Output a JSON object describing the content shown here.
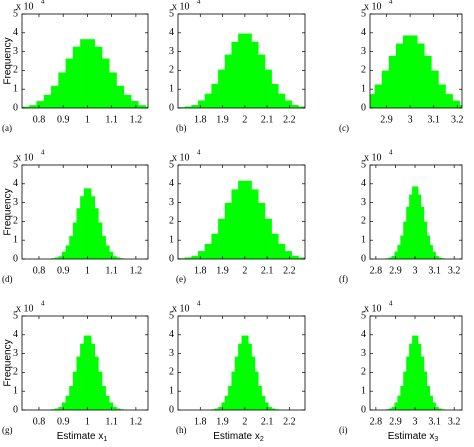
{
  "chart_data": [
    {
      "type": "histogram",
      "label": "(a)",
      "ylabel": "Frequency",
      "y_multiplier": "x 10",
      "y_multiplier_exponent": "4",
      "color": "#00ff00",
      "xlim": [
        0.73,
        1.25
      ],
      "ylim": [
        0,
        5
      ],
      "xticks": [
        0.8,
        0.9,
        1,
        1.1,
        1.2
      ],
      "yticks": [
        0,
        1,
        2,
        3,
        4,
        5
      ],
      "bins": [
        0.7,
        0.73,
        0.76,
        0.79,
        0.82,
        0.85,
        0.88,
        0.91,
        0.94,
        0.97,
        1,
        1.03,
        1.06,
        1.09,
        1.12,
        1.15,
        1.18,
        1.21,
        1.24,
        1.27,
        1.3
      ],
      "values": [
        0.04,
        0.07,
        0.15,
        0.37,
        0.7,
        1.18,
        1.89,
        2.63,
        3.26,
        3.66,
        3.66,
        3.26,
        2.63,
        1.89,
        1.18,
        0.7,
        0.37,
        0.15,
        0.07,
        0.04
      ]
    },
    {
      "type": "histogram",
      "label": "(b)",
      "y_multiplier": "x 10",
      "y_multiplier_exponent": "4",
      "color": "#00ff00",
      "xlim": [
        1.7,
        2.27
      ],
      "ylim": [
        0,
        5
      ],
      "xticks": [
        1.8,
        1.9,
        2,
        2.1,
        2.2
      ],
      "yticks": [
        0,
        1,
        2,
        3,
        4,
        5
      ],
      "bins": [
        1.7,
        1.73,
        1.76,
        1.79,
        1.82,
        1.85,
        1.88,
        1.91,
        1.94,
        1.97,
        2,
        2.03,
        2.06,
        2.09,
        2.12,
        2.15,
        2.18,
        2.21,
        2.24,
        2.27,
        2.3
      ],
      "values": [
        0.04,
        0.08,
        0.16,
        0.4,
        0.76,
        1.28,
        2.04,
        2.84,
        3.52,
        3.96,
        3.96,
        3.52,
        2.84,
        2.04,
        1.28,
        0.76,
        0.4,
        0.16,
        0.08,
        0.04
      ]
    },
    {
      "type": "histogram",
      "label": "(c)",
      "y_multiplier": "x 10",
      "y_multiplier_exponent": "4",
      "color": "#00ff00",
      "xlim": [
        2.83,
        3.22
      ],
      "ylim": [
        0,
        5
      ],
      "xticks": [
        2.9,
        3,
        3.1,
        3.2
      ],
      "yticks": [
        0,
        1,
        2,
        3,
        4,
        5
      ],
      "bins": [
        2.7,
        2.73,
        2.76,
        2.79,
        2.82,
        2.85,
        2.88,
        2.91,
        2.94,
        2.97,
        3,
        3.03,
        3.06,
        3.09,
        3.12,
        3.15,
        3.18,
        3.21,
        3.24,
        3.27,
        3.3
      ],
      "values": [
        0.04,
        0.08,
        0.16,
        0.39,
        0.74,
        1.25,
        1.99,
        2.77,
        3.43,
        3.86,
        3.86,
        3.43,
        2.77,
        1.99,
        1.25,
        0.74,
        0.39,
        0.16,
        0.08,
        0.04
      ]
    },
    {
      "type": "histogram",
      "label": "(d)",
      "ylabel": "Frequency",
      "y_multiplier": "x 10",
      "y_multiplier_exponent": "4",
      "color": "#00ff00",
      "xlim": [
        0.73,
        1.25
      ],
      "ylim": [
        0,
        5
      ],
      "xticks": [
        0.8,
        0.9,
        1,
        1.1,
        1.2
      ],
      "yticks": [
        0,
        1,
        2,
        3,
        4,
        5
      ],
      "bins": [
        0.85,
        0.865,
        0.88,
        0.895,
        0.91,
        0.925,
        0.94,
        0.955,
        0.97,
        0.985,
        1,
        1.015,
        1.03,
        1.045,
        1.06,
        1.075,
        1.09,
        1.105,
        1.12,
        1.135,
        1.15
      ],
      "values": [
        0.04,
        0.08,
        0.15,
        0.38,
        0.72,
        1.22,
        1.94,
        2.7,
        3.34,
        3.76,
        3.76,
        3.34,
        2.7,
        1.94,
        1.22,
        0.72,
        0.38,
        0.15,
        0.08,
        0.04
      ]
    },
    {
      "type": "histogram",
      "label": "(e)",
      "y_multiplier": "x 10",
      "y_multiplier_exponent": "4",
      "color": "#00ff00",
      "xlim": [
        1.7,
        2.27
      ],
      "ylim": [
        0,
        5
      ],
      "xticks": [
        1.8,
        1.9,
        2,
        2.1,
        2.2
      ],
      "yticks": [
        0,
        1,
        2,
        3,
        4,
        5
      ],
      "bins": [
        1.7,
        1.73,
        1.76,
        1.79,
        1.82,
        1.85,
        1.88,
        1.91,
        1.94,
        1.97,
        2,
        2.03,
        2.06,
        2.09,
        2.12,
        2.15,
        2.18,
        2.21,
        2.24,
        2.27,
        2.3
      ],
      "values": [
        0.04,
        0.08,
        0.17,
        0.42,
        0.8,
        1.34,
        2.14,
        2.98,
        3.7,
        4.16,
        4.16,
        3.7,
        2.98,
        2.14,
        1.34,
        0.8,
        0.42,
        0.17,
        0.08,
        0.04
      ]
    },
    {
      "type": "histogram",
      "label": "(f)",
      "y_multiplier": "x 10",
      "y_multiplier_exponent": "4",
      "color": "#00ff00",
      "xlim": [
        2.77,
        3.24
      ],
      "ylim": [
        0,
        5
      ],
      "xticks": [
        2.8,
        2.9,
        3,
        3.1,
        3.2
      ],
      "yticks": [
        0,
        1,
        2,
        3,
        4,
        5
      ],
      "bins": [
        2.85,
        2.865,
        2.88,
        2.895,
        2.91,
        2.925,
        2.94,
        2.955,
        2.97,
        2.985,
        3,
        3.015,
        3.03,
        3.045,
        3.06,
        3.075,
        3.09,
        3.105,
        3.12,
        3.135,
        3.15
      ],
      "values": [
        0.04,
        0.08,
        0.16,
        0.39,
        0.74,
        1.25,
        1.99,
        2.77,
        3.43,
        3.86,
        3.86,
        3.43,
        2.77,
        1.99,
        1.25,
        0.74,
        0.39,
        0.16,
        0.08,
        0.04
      ]
    },
    {
      "type": "histogram",
      "label": "(g)",
      "ylabel": "Frequency",
      "xlabel": "Estimate x",
      "xlabel_subscript": "1",
      "y_multiplier": "x 10",
      "y_multiplier_exponent": "4",
      "color": "#00ff00",
      "xlim": [
        0.73,
        1.25
      ],
      "ylim": [
        0,
        5
      ],
      "xticks": [
        0.8,
        0.9,
        1,
        1.1,
        1.2
      ],
      "yticks": [
        0,
        1,
        2,
        3,
        4,
        5
      ],
      "bins": [
        0.85,
        0.865,
        0.88,
        0.895,
        0.91,
        0.925,
        0.94,
        0.955,
        0.97,
        0.985,
        1,
        1.015,
        1.03,
        1.045,
        1.06,
        1.075,
        1.09,
        1.105,
        1.12,
        1.135,
        1.15
      ],
      "values": [
        0.04,
        0.08,
        0.16,
        0.4,
        0.76,
        1.28,
        2.04,
        2.84,
        3.52,
        3.96,
        3.96,
        3.52,
        2.84,
        2.04,
        1.28,
        0.76,
        0.4,
        0.16,
        0.08,
        0.04
      ]
    },
    {
      "type": "histogram",
      "label": "(h)",
      "xlabel": "Estimate x",
      "xlabel_subscript": "2",
      "y_multiplier": "x 10",
      "y_multiplier_exponent": "4",
      "color": "#00ff00",
      "xlim": [
        1.7,
        2.27
      ],
      "ylim": [
        0,
        5
      ],
      "xticks": [
        1.8,
        1.9,
        2,
        2.1,
        2.2
      ],
      "yticks": [
        0,
        1,
        2,
        3,
        4,
        5
      ],
      "bins": [
        1.85,
        1.865,
        1.88,
        1.895,
        1.91,
        1.925,
        1.94,
        1.955,
        1.97,
        1.985,
        2,
        2.015,
        2.03,
        2.045,
        2.06,
        2.075,
        2.09,
        2.105,
        2.12,
        2.135,
        2.15
      ],
      "values": [
        0.04,
        0.08,
        0.16,
        0.4,
        0.76,
        1.28,
        2.04,
        2.84,
        3.52,
        3.96,
        3.96,
        3.52,
        2.84,
        2.04,
        1.28,
        0.76,
        0.4,
        0.16,
        0.08,
        0.04
      ]
    },
    {
      "type": "histogram",
      "label": "(i)",
      "xlabel": "Estimate x",
      "xlabel_subscript": "3",
      "y_multiplier": "x 10",
      "y_multiplier_exponent": "4",
      "color": "#00ff00",
      "xlim": [
        2.77,
        3.24
      ],
      "ylim": [
        0,
        5
      ],
      "xticks": [
        2.8,
        2.9,
        3,
        3.1,
        3.2
      ],
      "yticks": [
        0,
        1,
        2,
        3,
        4,
        5
      ],
      "bins": [
        2.85,
        2.865,
        2.88,
        2.895,
        2.91,
        2.925,
        2.94,
        2.955,
        2.97,
        2.985,
        3,
        3.015,
        3.03,
        3.045,
        3.06,
        3.075,
        3.09,
        3.105,
        3.12,
        3.135,
        3.15
      ],
      "values": [
        0.04,
        0.08,
        0.16,
        0.4,
        0.76,
        1.28,
        2.04,
        2.84,
        3.52,
        3.96,
        3.96,
        3.52,
        2.84,
        2.04,
        1.28,
        0.76,
        0.4,
        0.16,
        0.08,
        0.04
      ]
    }
  ]
}
